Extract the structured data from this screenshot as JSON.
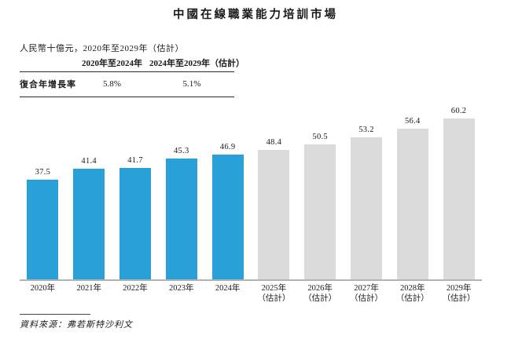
{
  "title": "中國在線職業能力培訓市場",
  "subtitle": "人民幣十億元，2020年至2029年（估計）",
  "cagr_table": {
    "col_headers": [
      "2020年至2024年",
      "2024年至2029年（估計）"
    ],
    "row_label": "復合年增長率",
    "values": [
      "5.8%",
      "5.1%"
    ]
  },
  "source": {
    "text": "資料來源：弗若斯特沙利文"
  },
  "colors": {
    "actual": "#29A0D8",
    "estimate": "#DBDBDB",
    "axis": "#B3B3B3"
  },
  "chart_data": {
    "type": "bar",
    "title": "中國在線職業能力培訓市場",
    "ylabel": "人民幣十億元",
    "xlabel": "",
    "ylim": [
      0,
      65
    ],
    "grid": false,
    "legend": "none",
    "categories": [
      {
        "year": "2020年",
        "note": ""
      },
      {
        "year": "2021年",
        "note": ""
      },
      {
        "year": "2022年",
        "note": ""
      },
      {
        "year": "2023年",
        "note": ""
      },
      {
        "year": "2024年",
        "note": ""
      },
      {
        "year": "2025年",
        "note": "（估計）"
      },
      {
        "year": "2026年",
        "note": "（估計）"
      },
      {
        "year": "2027年",
        "note": "（估計）"
      },
      {
        "year": "2028年",
        "note": "（估計）"
      },
      {
        "year": "2029年",
        "note": "（估計）"
      }
    ],
    "values": [
      37.5,
      41.4,
      41.7,
      45.3,
      46.9,
      48.4,
      50.5,
      53.2,
      56.4,
      60.2
    ],
    "segments": [
      "actual",
      "actual",
      "actual",
      "actual",
      "actual",
      "estimate",
      "estimate",
      "estimate",
      "estimate",
      "estimate"
    ]
  }
}
